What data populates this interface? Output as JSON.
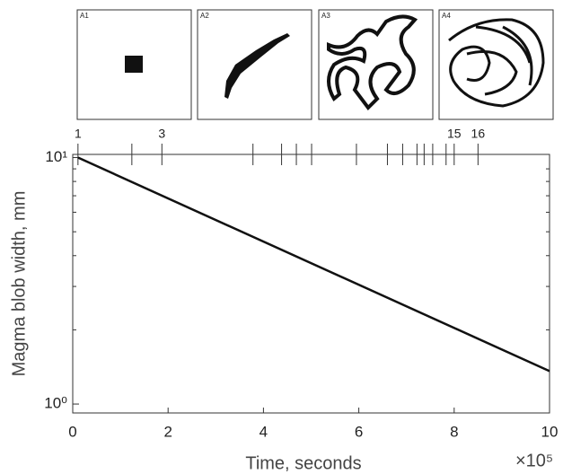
{
  "panels": [
    "A1",
    "A2",
    "A3",
    "A4"
  ],
  "chart_data": {
    "type": "line",
    "x_label": "Time, seconds",
    "y_label": "Magma blob width, mm",
    "x_multiplier": "×10⁵",
    "xlim": [
      0,
      10
    ],
    "xticks": [
      0,
      2,
      4,
      6,
      8,
      10
    ],
    "ylim": [
      0.92,
      10.3
    ],
    "y_log": true,
    "yticks": [
      {
        "value": 1,
        "label": "10⁰"
      },
      {
        "value": 10,
        "label": "10¹"
      }
    ],
    "top_ticks": [
      0.11,
      1.24,
      1.87,
      3.78,
      4.38,
      4.69,
      5.01,
      5.95,
      6.6,
      6.92,
      7.22,
      7.37,
      7.55,
      7.83,
      8.0,
      8.5
    ],
    "top_tick_labels": [
      "1",
      null,
      "3",
      null,
      null,
      null,
      null,
      null,
      null,
      null,
      null,
      null,
      null,
      null,
      "15",
      "16"
    ],
    "series": [
      {
        "color": "#111111",
        "x": [
          0.11,
          10
        ],
        "values": [
          10,
          1.36
        ]
      }
    ]
  }
}
